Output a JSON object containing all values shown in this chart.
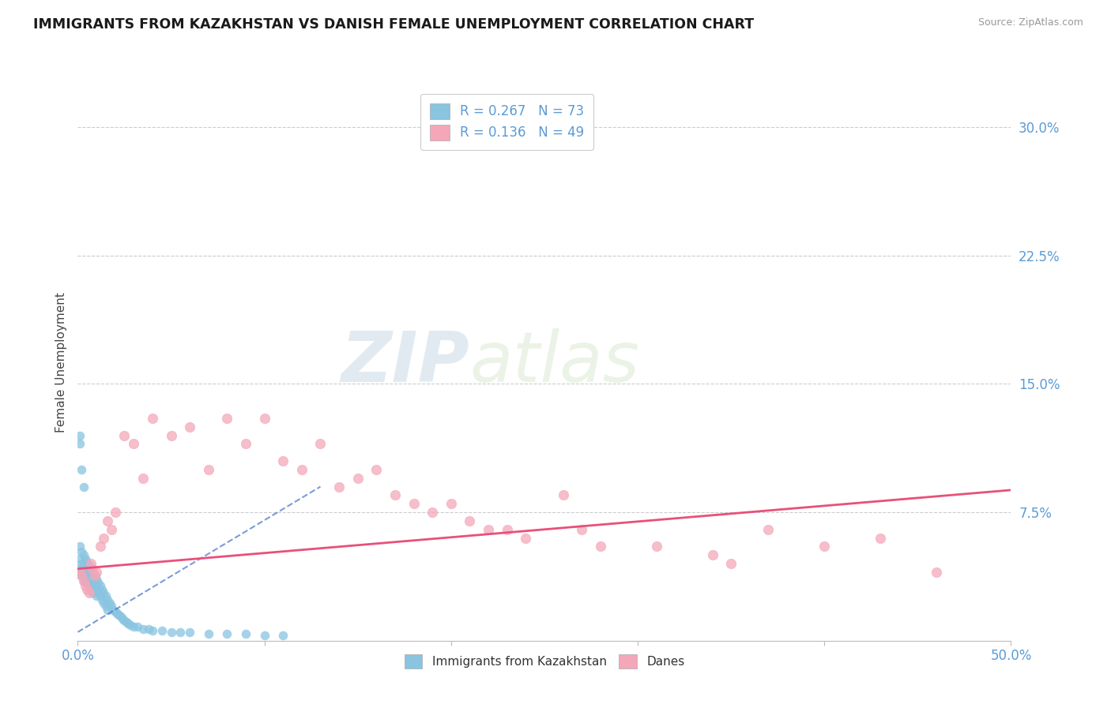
{
  "title": "IMMIGRANTS FROM KAZAKHSTAN VS DANISH FEMALE UNEMPLOYMENT CORRELATION CHART",
  "source": "Source: ZipAtlas.com",
  "ylabel": "Female Unemployment",
  "xlim": [
    0,
    0.5
  ],
  "ylim": [
    0,
    0.325
  ],
  "right_yticks": [
    0.075,
    0.15,
    0.225,
    0.3
  ],
  "right_yticklabels": [
    "7.5%",
    "15.0%",
    "22.5%",
    "30.0%"
  ],
  "legend_label1": "R = 0.267   N = 73",
  "legend_label2": "R = 0.136   N = 49",
  "color_blue": "#89c4e1",
  "color_pink": "#f4a7b9",
  "color_trendline_blue": "#4472c4",
  "color_trendline_pink": "#e8507a",
  "watermark_zip": "ZIP",
  "watermark_atlas": "atlas",
  "background_color": "#ffffff",
  "grid_color": "#cccccc",
  "axis_color": "#5b9bd5",
  "title_color": "#1a1a1a",
  "blue_scatter_x": [
    0.001,
    0.001,
    0.001,
    0.002,
    0.002,
    0.002,
    0.002,
    0.003,
    0.003,
    0.003,
    0.003,
    0.004,
    0.004,
    0.004,
    0.005,
    0.005,
    0.005,
    0.006,
    0.006,
    0.006,
    0.007,
    0.007,
    0.007,
    0.008,
    0.008,
    0.008,
    0.009,
    0.009,
    0.01,
    0.01,
    0.01,
    0.011,
    0.011,
    0.012,
    0.012,
    0.013,
    0.013,
    0.014,
    0.014,
    0.015,
    0.015,
    0.016,
    0.016,
    0.017,
    0.018,
    0.019,
    0.02,
    0.021,
    0.022,
    0.023,
    0.024,
    0.025,
    0.026,
    0.027,
    0.028,
    0.03,
    0.032,
    0.035,
    0.038,
    0.04,
    0.045,
    0.05,
    0.055,
    0.06,
    0.07,
    0.08,
    0.09,
    0.1,
    0.11,
    0.001,
    0.002,
    0.003,
    0.001
  ],
  "blue_scatter_y": [
    0.055,
    0.048,
    0.042,
    0.052,
    0.045,
    0.04,
    0.038,
    0.05,
    0.044,
    0.038,
    0.035,
    0.048,
    0.04,
    0.035,
    0.046,
    0.04,
    0.034,
    0.044,
    0.038,
    0.033,
    0.042,
    0.036,
    0.03,
    0.04,
    0.034,
    0.028,
    0.038,
    0.032,
    0.036,
    0.03,
    0.026,
    0.034,
    0.028,
    0.032,
    0.026,
    0.03,
    0.024,
    0.028,
    0.022,
    0.026,
    0.02,
    0.024,
    0.018,
    0.022,
    0.02,
    0.018,
    0.017,
    0.016,
    0.015,
    0.014,
    0.013,
    0.012,
    0.011,
    0.01,
    0.009,
    0.008,
    0.008,
    0.007,
    0.007,
    0.006,
    0.006,
    0.005,
    0.005,
    0.005,
    0.004,
    0.004,
    0.004,
    0.003,
    0.003,
    0.12,
    0.1,
    0.09,
    0.115
  ],
  "pink_scatter_x": [
    0.001,
    0.002,
    0.003,
    0.004,
    0.005,
    0.006,
    0.007,
    0.008,
    0.009,
    0.01,
    0.012,
    0.014,
    0.016,
    0.018,
    0.02,
    0.025,
    0.03,
    0.035,
    0.04,
    0.05,
    0.06,
    0.07,
    0.08,
    0.09,
    0.1,
    0.11,
    0.12,
    0.13,
    0.14,
    0.15,
    0.16,
    0.17,
    0.18,
    0.19,
    0.2,
    0.21,
    0.22,
    0.23,
    0.24,
    0.26,
    0.27,
    0.28,
    0.31,
    0.34,
    0.35,
    0.37,
    0.4,
    0.43,
    0.46
  ],
  "pink_scatter_y": [
    0.04,
    0.038,
    0.035,
    0.032,
    0.03,
    0.028,
    0.045,
    0.042,
    0.038,
    0.04,
    0.055,
    0.06,
    0.07,
    0.065,
    0.075,
    0.12,
    0.115,
    0.095,
    0.13,
    0.12,
    0.125,
    0.1,
    0.13,
    0.115,
    0.13,
    0.105,
    0.1,
    0.115,
    0.09,
    0.095,
    0.1,
    0.085,
    0.08,
    0.075,
    0.08,
    0.07,
    0.065,
    0.065,
    0.06,
    0.085,
    0.065,
    0.055,
    0.055,
    0.05,
    0.045,
    0.065,
    0.055,
    0.06,
    0.04
  ],
  "pink_trendline_x0": 0.0,
  "pink_trendline_y0": 0.042,
  "pink_trendline_x1": 0.5,
  "pink_trendline_y1": 0.088,
  "blue_trendline_x0": 0.0,
  "blue_trendline_y0": 0.005,
  "blue_trendline_x1": 0.13,
  "blue_trendline_y1": 0.09
}
